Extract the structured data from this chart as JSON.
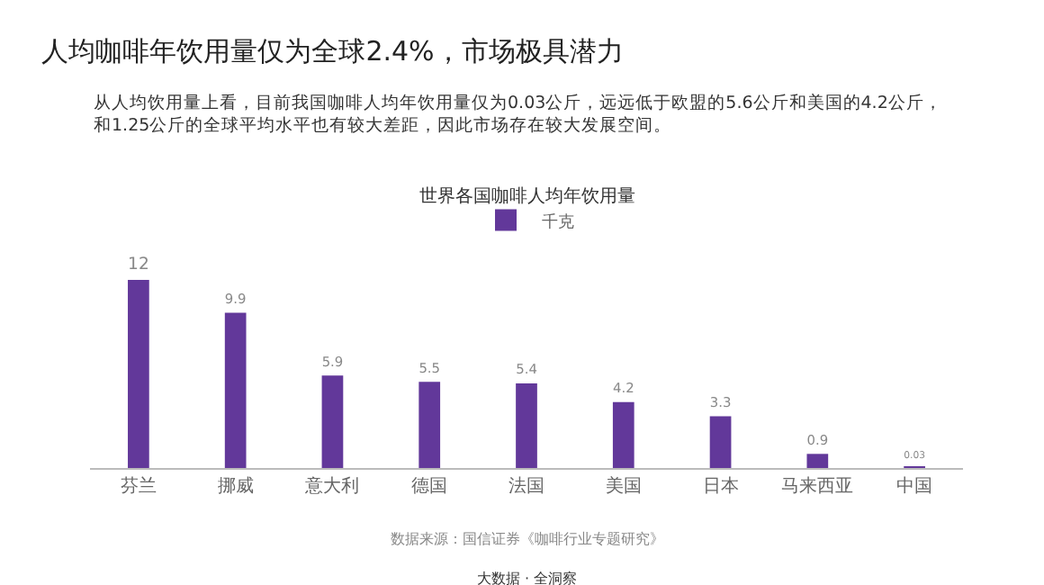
{
  "chart_data": {
    "type": "bar",
    "title": "人均咖啡年饮用量仅为全球2.4%，市场极具潜力",
    "subtitle": "从人均饮用量上看，目前我国咖啡人均年饮用量仅为0.03公斤，远远低于欧盟的5.6公斤和美国的4.2公斤，和1.25公斤的全球平均水平也有较大差距，因此市场存在较大发展空间。",
    "annotations": [
      "世界各国咖啡人均年饮用量",
      "数据来源：国信证券《咖啡行业专题研究》",
      "大数据 · 全洞察"
    ],
    "categories": [
      "芬兰",
      "挪威",
      "意大利",
      "德国",
      "法国",
      "美国",
      "日本",
      "马来西亚",
      "中国"
    ],
    "series": [
      {
        "name": "千克",
        "color": "#62389a",
        "values": [
          12,
          9.9,
          5.9,
          5.5,
          5.4,
          4.2,
          3.3,
          0.9,
          0.03
        ]
      }
    ],
    "data_labels": true,
    "legend": "top",
    "grid": false
  }
}
